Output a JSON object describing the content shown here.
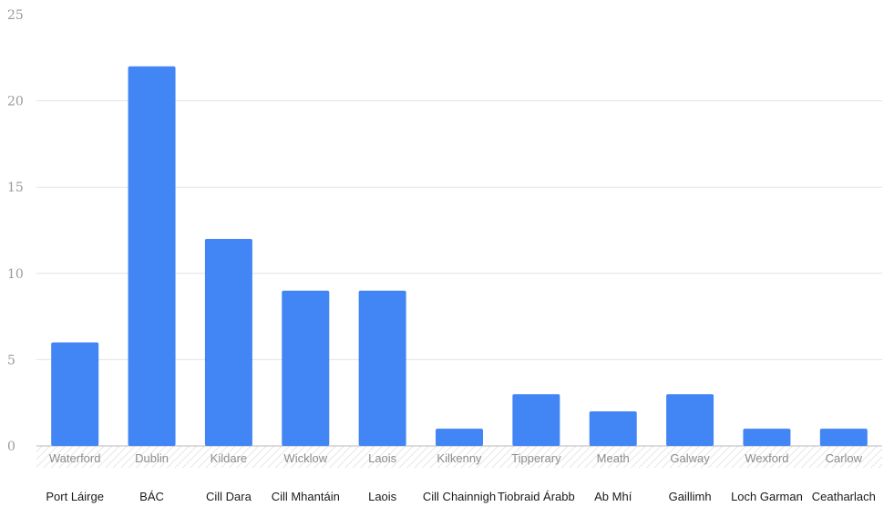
{
  "chart_data": {
    "type": "bar",
    "categories": [
      "Waterford",
      "Dublin",
      "Kildare",
      "Wicklow",
      "Laois",
      "Kilkenny",
      "Tipperary",
      "Meath",
      "Galway",
      "Wexford",
      "Carlow"
    ],
    "categories_irish": [
      "Port Láirge",
      "BÁC",
      "Cill Dara",
      "Cill Mhantáin",
      "Laois",
      "Cill Chainnigh",
      "Tiobraid Árabb",
      "Ab Mhí",
      "Gaillimh",
      "Loch Garman",
      "Ceatharlach"
    ],
    "values": [
      6,
      22,
      12,
      9,
      9,
      1,
      3,
      2,
      3,
      1,
      1
    ],
    "title": "",
    "xlabel": "",
    "ylabel": "",
    "ylim": [
      0,
      25
    ],
    "yticks": [
      "0",
      "5",
      "10",
      "15",
      "20",
      "25"
    ],
    "grid": true,
    "legend": "none",
    "colors": {
      "bar": "#4285f4",
      "grid": "#e3e3e3",
      "baseline": "#b8b8b8"
    }
  }
}
